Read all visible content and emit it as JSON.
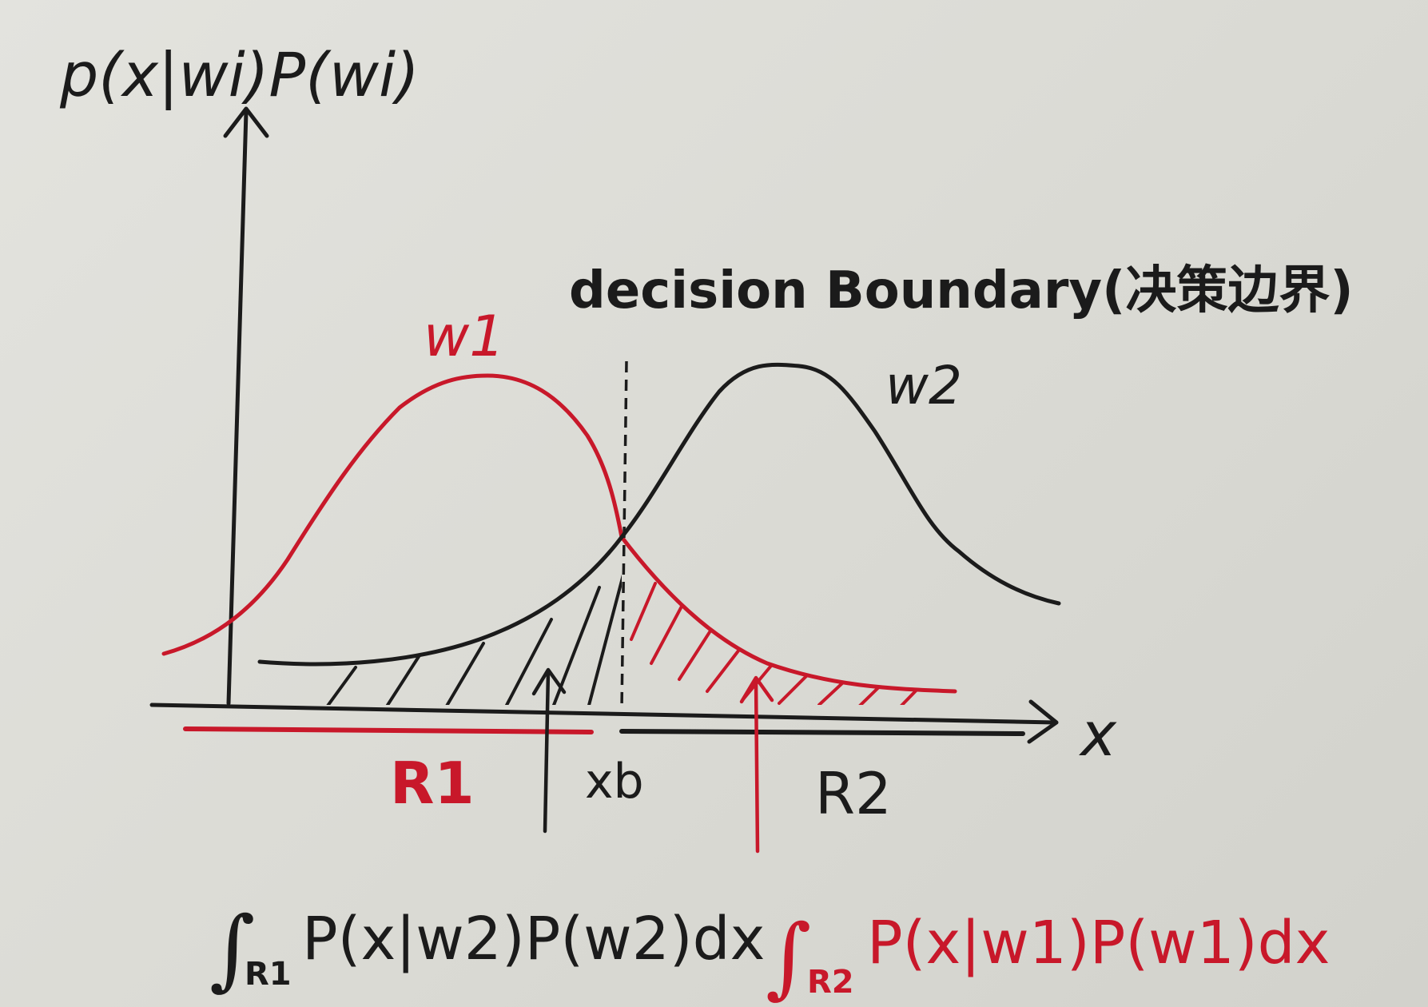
{
  "colors": {
    "ink": "#1b1b1b",
    "red": "#c8182a",
    "paper": "#dcdcd6"
  },
  "labels": {
    "y_axis": "p(x|wi)P(wi)",
    "x_axis": "x",
    "decision_boundary": "decision Boundary(决策边界)",
    "class1": "w1",
    "class2": "w2",
    "region1": "R1",
    "region2": "R2",
    "boundary_point": "xb",
    "integral_w2_prefix": "∫",
    "integral_w2_sub": "R1",
    "integral_w2_body": "P(x|w2)P(w2)dx",
    "integral_w1_prefix": "∫",
    "integral_w1_sub": "R2",
    "integral_w1_body": "P(x|w1)P(w1)dx"
  }
}
